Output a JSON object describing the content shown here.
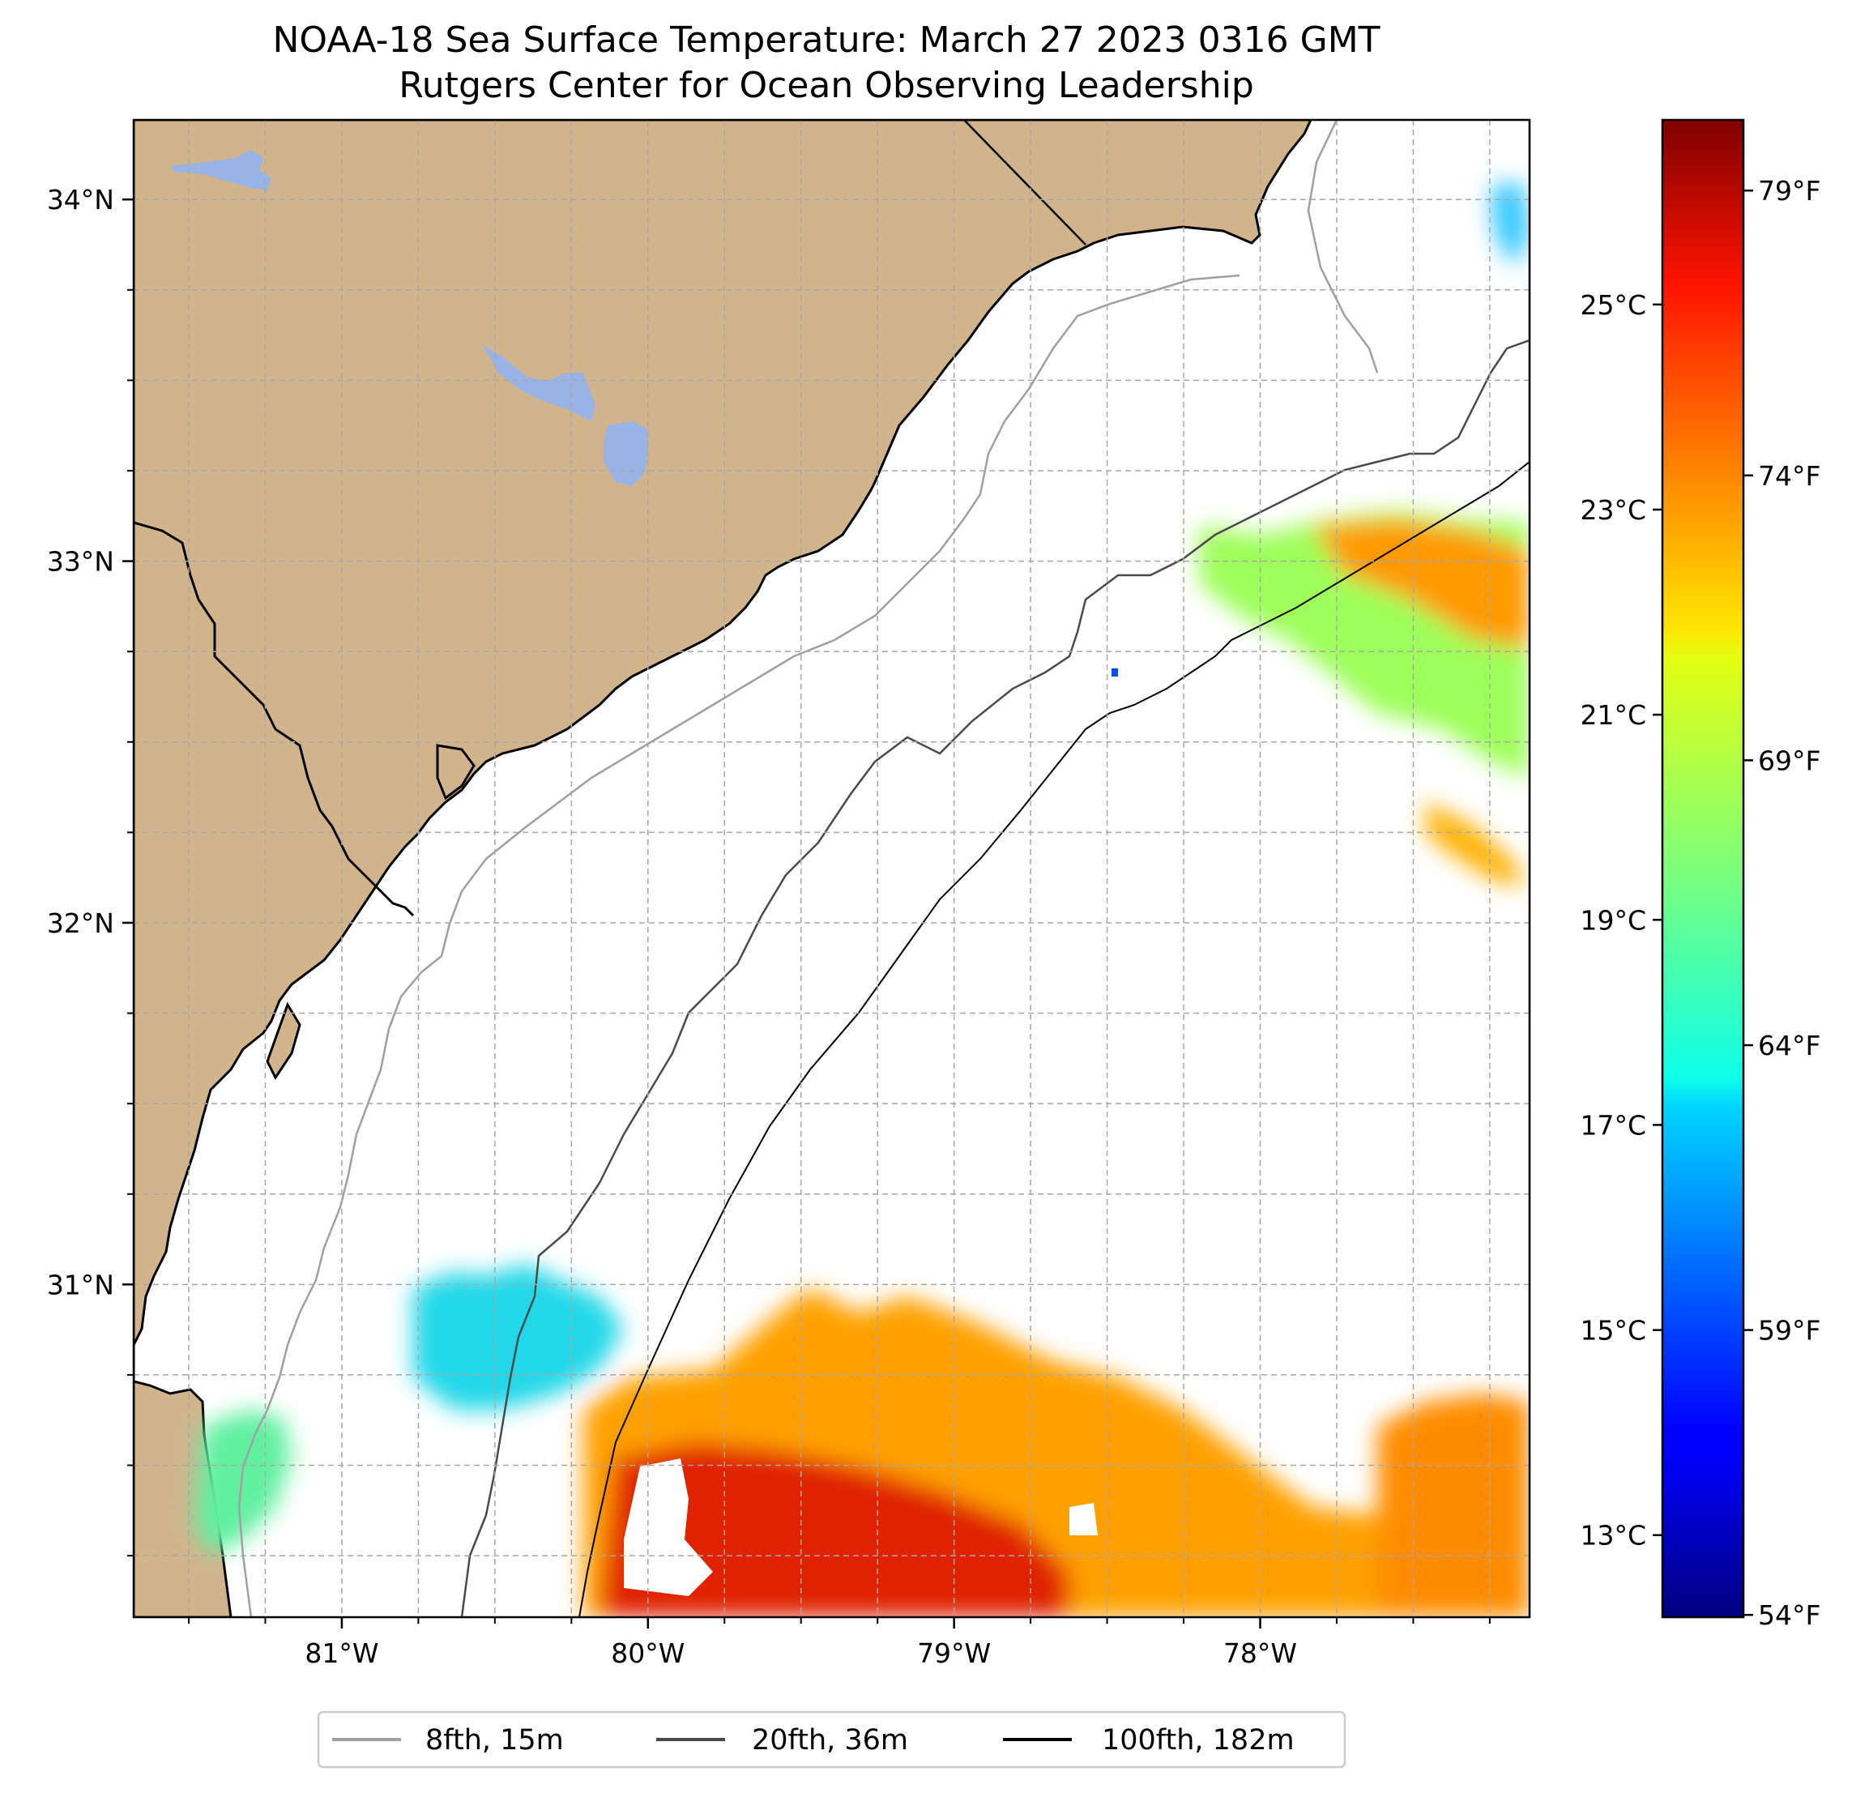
{
  "title": {
    "line1": "NOAA-18 Sea Surface Temperature: March 27 2023 0316 GMT",
    "line2": "Rutgers Center for Ocean Observing Leadership"
  },
  "map": {
    "lon_range": [
      -81.68,
      -77.12
    ],
    "lat_range": [
      30.08,
      34.22
    ],
    "land_color": "#d2b48c",
    "lake_color": "#99b3e6",
    "grid": true,
    "lon_ticks": [
      {
        "value": -81,
        "label": "81°W"
      },
      {
        "value": -80,
        "label": "80°W"
      },
      {
        "value": -79,
        "label": "79°W"
      },
      {
        "value": -78,
        "label": "78°W"
      }
    ],
    "lat_ticks": [
      {
        "value": 34,
        "label": "34°N"
      },
      {
        "value": 33,
        "label": "33°N"
      },
      {
        "value": 32,
        "label": "32°N"
      },
      {
        "value": 31,
        "label": "31°N"
      }
    ]
  },
  "colorbar": {
    "colormap": "jet",
    "range_c": [
      12.2,
      26.8
    ],
    "celsius_ticks": [
      {
        "value": 25,
        "label": "25°C"
      },
      {
        "value": 23,
        "label": "23°C"
      },
      {
        "value": 21,
        "label": "21°C"
      },
      {
        "value": 19,
        "label": "19°C"
      },
      {
        "value": 17,
        "label": "17°C"
      },
      {
        "value": 15,
        "label": "15°C"
      },
      {
        "value": 13,
        "label": "13°C"
      }
    ],
    "fahrenheit_ticks": [
      {
        "value": 79,
        "label": "79°F"
      },
      {
        "value": 74,
        "label": "74°F"
      },
      {
        "value": 69,
        "label": "69°F"
      },
      {
        "value": 64,
        "label": "64°F"
      },
      {
        "value": 59,
        "label": "59°F"
      },
      {
        "value": 54,
        "label": "54°F"
      }
    ]
  },
  "legend": {
    "placement": "bottom-center",
    "items": [
      {
        "label": "8fth, 15m",
        "color": "#a0a0a0"
      },
      {
        "label": "20fth, 36m",
        "color": "#4a4a4a"
      },
      {
        "label": "100fth, 182m",
        "color": "#000000"
      }
    ]
  }
}
